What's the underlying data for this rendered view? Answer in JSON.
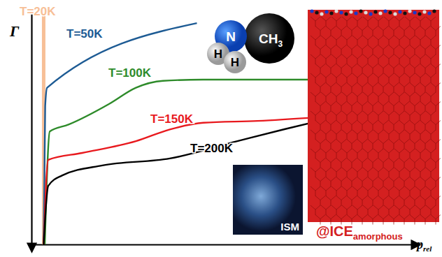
{
  "chart_data": {
    "type": "line",
    "y_label": "Γ",
    "x_label": {
      "text": "p",
      "subscript": "rel"
    },
    "xlim": [
      0,
      100
    ],
    "ylim": [
      0,
      100
    ],
    "xticks": [],
    "yticks": [],
    "tick_labels": false,
    "grid": false,
    "series": [
      {
        "name": "T=20K",
        "color": "#f7bf97",
        "line_style": "solid",
        "x": [
          3.2,
          3.2
        ],
        "values": [
          0,
          100
        ]
      },
      {
        "name": "T=50K",
        "color": "#1d5b94",
        "line_style": "solid",
        "x": [
          3.2,
          3.6,
          4.1,
          43.4
        ],
        "values": [
          0,
          60,
          68,
          96
        ]
      },
      {
        "name": "T=100K",
        "color": "#2e8b2a",
        "line_style": "solid",
        "x": [
          3.5,
          4.8,
          9.7,
          20.4,
          27.4,
          34.5,
          45,
          75
        ],
        "values": [
          0,
          49,
          52,
          61,
          68,
          71,
          71.5,
          71.5
        ]
      },
      {
        "name": "T=150K",
        "color": "#e8191e",
        "line_style": "solid",
        "x": [
          3.2,
          4.4,
          13.3,
          27.4,
          36.3,
          45.1,
          59.3,
          75.2
        ],
        "values": [
          0,
          36.7,
          39.7,
          44.8,
          49.9,
          52.8,
          53.6,
          55.2
        ]
      },
      {
        "name": "T=200K",
        "color": "#000000",
        "line_style": "solid",
        "x": [
          3.2,
          4.4,
          8,
          18.6,
          36.3,
          54,
          66.4,
          75.2
        ],
        "values": [
          0,
          25.4,
          29.9,
          34.3,
          37.3,
          44.8,
          50,
          53.5
        ]
      }
    ],
    "annotations": [
      {
        "text": "N"
      },
      {
        "text": "CH",
        "subscript": "3"
      },
      {
        "text": "H"
      },
      {
        "text": "H"
      },
      {
        "text": "ISM"
      },
      {
        "text": "@ICE",
        "subscript": "amorphous"
      }
    ]
  }
}
